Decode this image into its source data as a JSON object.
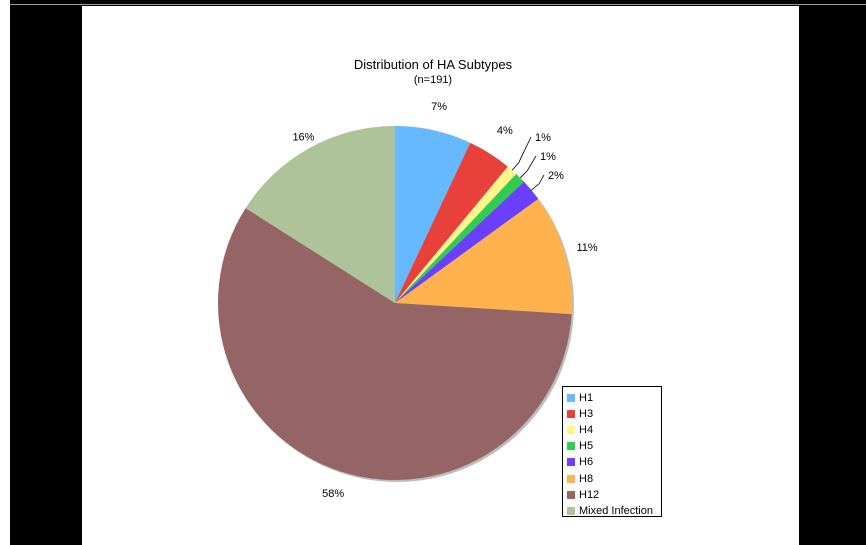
{
  "chart_data": {
    "type": "pie",
    "title": "Distribution of HA Subtypes",
    "subtitle": "(n=191)",
    "legend_position": "bottom-right",
    "slices": [
      {
        "name": "H1",
        "value": 7,
        "label": "7%",
        "color": "#66b8ff"
      },
      {
        "name": "H3",
        "value": 4,
        "label": "4%",
        "color": "#e8413b"
      },
      {
        "name": "H4",
        "value": 1,
        "label": "1%",
        "color": "#fff78a"
      },
      {
        "name": "H5",
        "value": 1,
        "label": "1%",
        "color": "#33cc52"
      },
      {
        "name": "H6",
        "value": 2,
        "label": "2%",
        "color": "#6a3fff"
      },
      {
        "name": "H8",
        "value": 11,
        "label": "11%",
        "color": "#ffb24d"
      },
      {
        "name": "H12",
        "value": 58,
        "label": "58%",
        "color": "#956464"
      },
      {
        "name": "Mixed Infection",
        "value": 16,
        "label": "16%",
        "color": "#aec39a"
      }
    ]
  }
}
